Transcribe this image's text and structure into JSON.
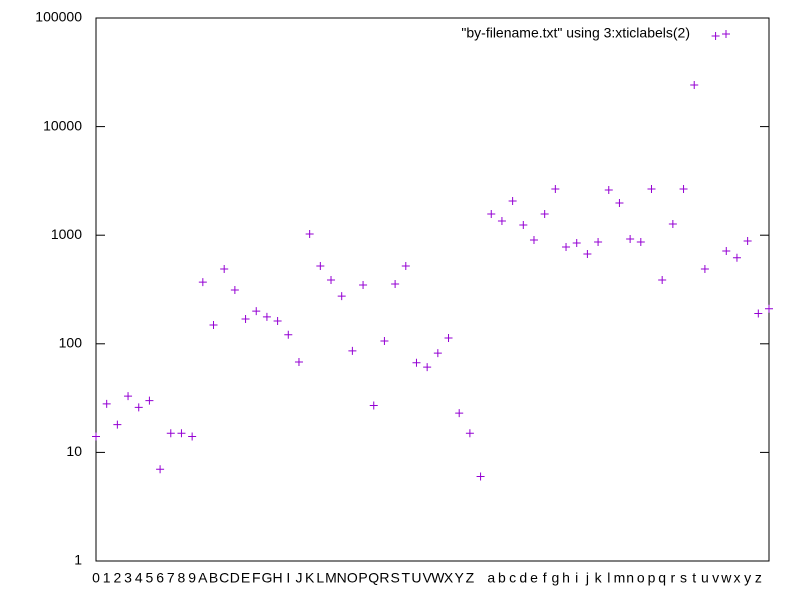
{
  "chart_data": {
    "type": "scatter",
    "categories": [
      "0",
      "1",
      "2",
      "3",
      "4",
      "5",
      "6",
      "7",
      "8",
      "9",
      "A",
      "B",
      "C",
      "D",
      "E",
      "F",
      "G",
      "H",
      "I",
      "J",
      "K",
      "L",
      "M",
      "N",
      "O",
      "P",
      "Q",
      "R",
      "S",
      "T",
      "U",
      "V",
      "W",
      "X",
      "Y",
      "Z",
      null,
      "a",
      "b",
      "c",
      "d",
      "e",
      "f",
      "g",
      "h",
      "i",
      "j",
      "k",
      "l",
      "m",
      "n",
      "o",
      "p",
      "q",
      "r",
      "s",
      "t",
      "u",
      "v",
      "w",
      "x",
      "y",
      "z",
      null
    ],
    "series": [
      {
        "name": "\"by-filename.txt\" using 3:xticlabels(2)",
        "color": "#9400d3",
        "values": [
          14,
          28,
          18,
          33,
          26,
          30,
          7,
          15,
          15,
          14,
          370,
          149,
          489,
          313,
          169,
          200,
          177,
          162,
          121,
          68,
          1025,
          520,
          387,
          275,
          86,
          348,
          27,
          106,
          355,
          520,
          67,
          61,
          82,
          113,
          23,
          15,
          6,
          1568,
          1352,
          2065,
          1242,
          903,
          1568,
          2663,
          778,
          848,
          671,
          865,
          2608,
          1979,
          923,
          865,
          2663,
          387,
          1268,
          2663,
          24150,
          489,
          68240,
          716,
          620,
          885,
          190,
          210
        ]
      }
    ],
    "ylim": [
      1,
      100000
    ],
    "yticks": [
      1,
      10,
      100,
      1000,
      10000,
      100000
    ],
    "log_scale": true,
    "legend": "top-right"
  }
}
